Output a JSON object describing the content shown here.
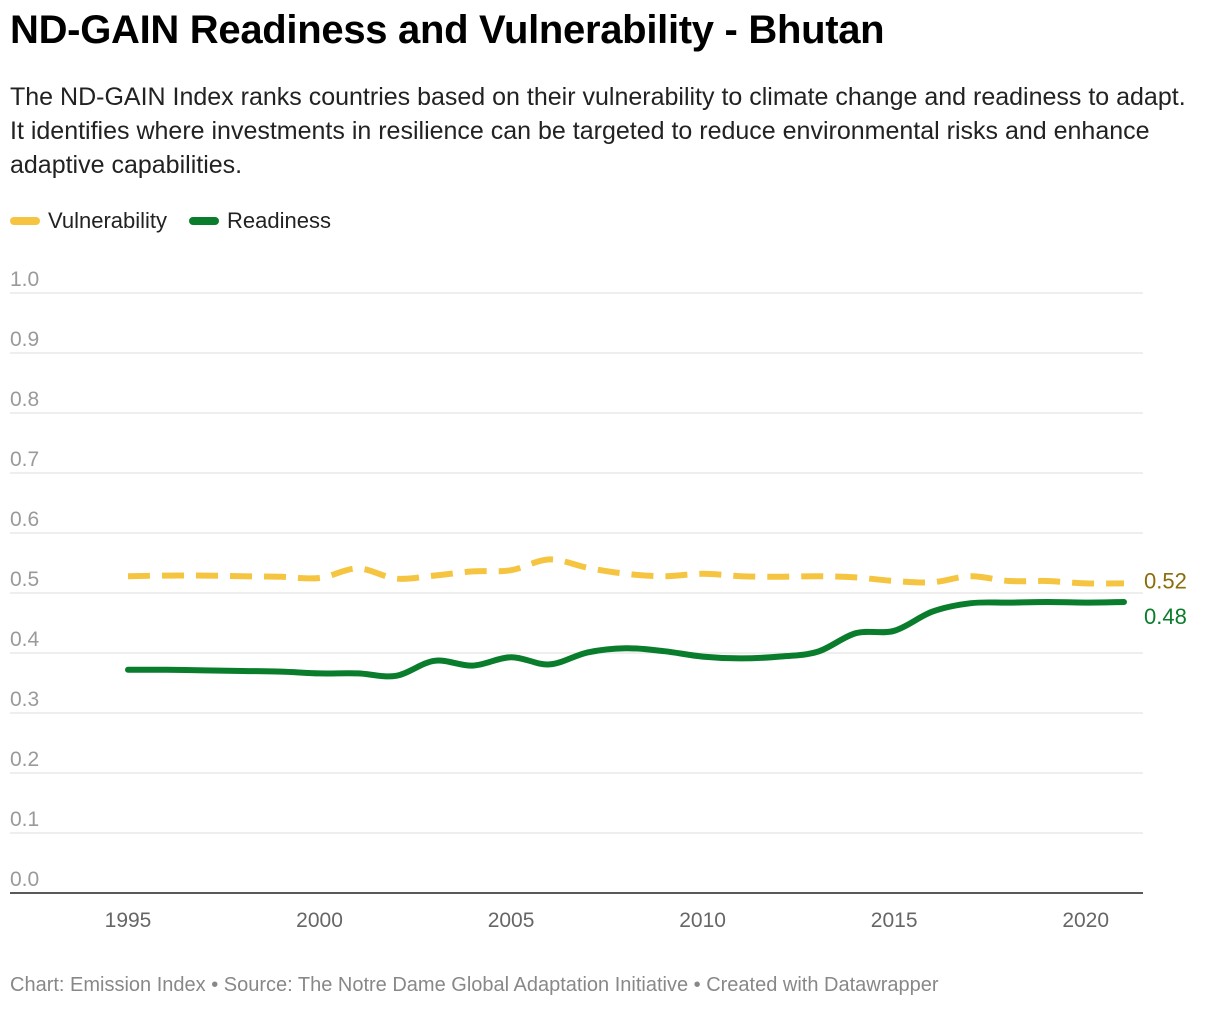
{
  "header": {
    "title": "ND-GAIN Readiness and Vulnerability - Bhutan",
    "subtitle": "The ND-GAIN Index ranks countries based on their vulnerability to climate change and readiness to adapt. It identifies where investments in resilience can be targeted to reduce environmental risks and enhance adaptive capabilities."
  },
  "legend": {
    "items": [
      {
        "label": "Vulnerability",
        "color": "#f5c542"
      },
      {
        "label": "Readiness",
        "color": "#0a7d2c"
      }
    ]
  },
  "footer": {
    "text": "Chart: Emission Index • Source: The Notre Dame Global Adaptation Initiative • Created with Datawrapper"
  },
  "chart_data": {
    "type": "line",
    "title": "ND-GAIN Readiness and Vulnerability - Bhutan",
    "xlabel": "",
    "ylabel": "",
    "xlim": [
      1995,
      2021
    ],
    "ylim": [
      0,
      1.0
    ],
    "x_ticks": [
      1995,
      2000,
      2005,
      2010,
      2015,
      2020
    ],
    "y_ticks": [
      0.0,
      0.1,
      0.2,
      0.3,
      0.4,
      0.5,
      0.6,
      0.7,
      0.8,
      0.9,
      1.0
    ],
    "y_tick_labels": [
      "0.0",
      "0.1",
      "0.2",
      "0.3",
      "0.4",
      "0.5",
      "0.6",
      "0.7",
      "0.8",
      "0.9",
      "1.0"
    ],
    "grid": true,
    "legend_position": "top-left",
    "x": [
      1995,
      1996,
      1997,
      1998,
      1999,
      2000,
      2001,
      2002,
      2003,
      2004,
      2005,
      2006,
      2007,
      2008,
      2009,
      2010,
      2011,
      2012,
      2013,
      2014,
      2015,
      2016,
      2017,
      2018,
      2019,
      2020,
      2021
    ],
    "series": [
      {
        "name": "Vulnerability",
        "color": "#f5c542",
        "dash": true,
        "end_label": "0.52",
        "label_color": "#8a6d0a",
        "values": [
          0.528,
          0.529,
          0.529,
          0.528,
          0.527,
          0.525,
          0.541,
          0.524,
          0.529,
          0.536,
          0.538,
          0.556,
          0.542,
          0.532,
          0.528,
          0.532,
          0.528,
          0.527,
          0.528,
          0.526,
          0.52,
          0.518,
          0.528,
          0.52,
          0.52,
          0.516,
          0.516
        ]
      },
      {
        "name": "Readiness",
        "color": "#0a7d2c",
        "dash": false,
        "end_label": "0.48",
        "label_color": "#0a7d2c",
        "values": [
          0.372,
          0.372,
          0.371,
          0.37,
          0.369,
          0.366,
          0.366,
          0.362,
          0.387,
          0.379,
          0.393,
          0.381,
          0.401,
          0.408,
          0.403,
          0.394,
          0.391,
          0.394,
          0.402,
          0.433,
          0.437,
          0.469,
          0.483,
          0.484,
          0.485,
          0.484,
          0.485
        ]
      }
    ]
  }
}
